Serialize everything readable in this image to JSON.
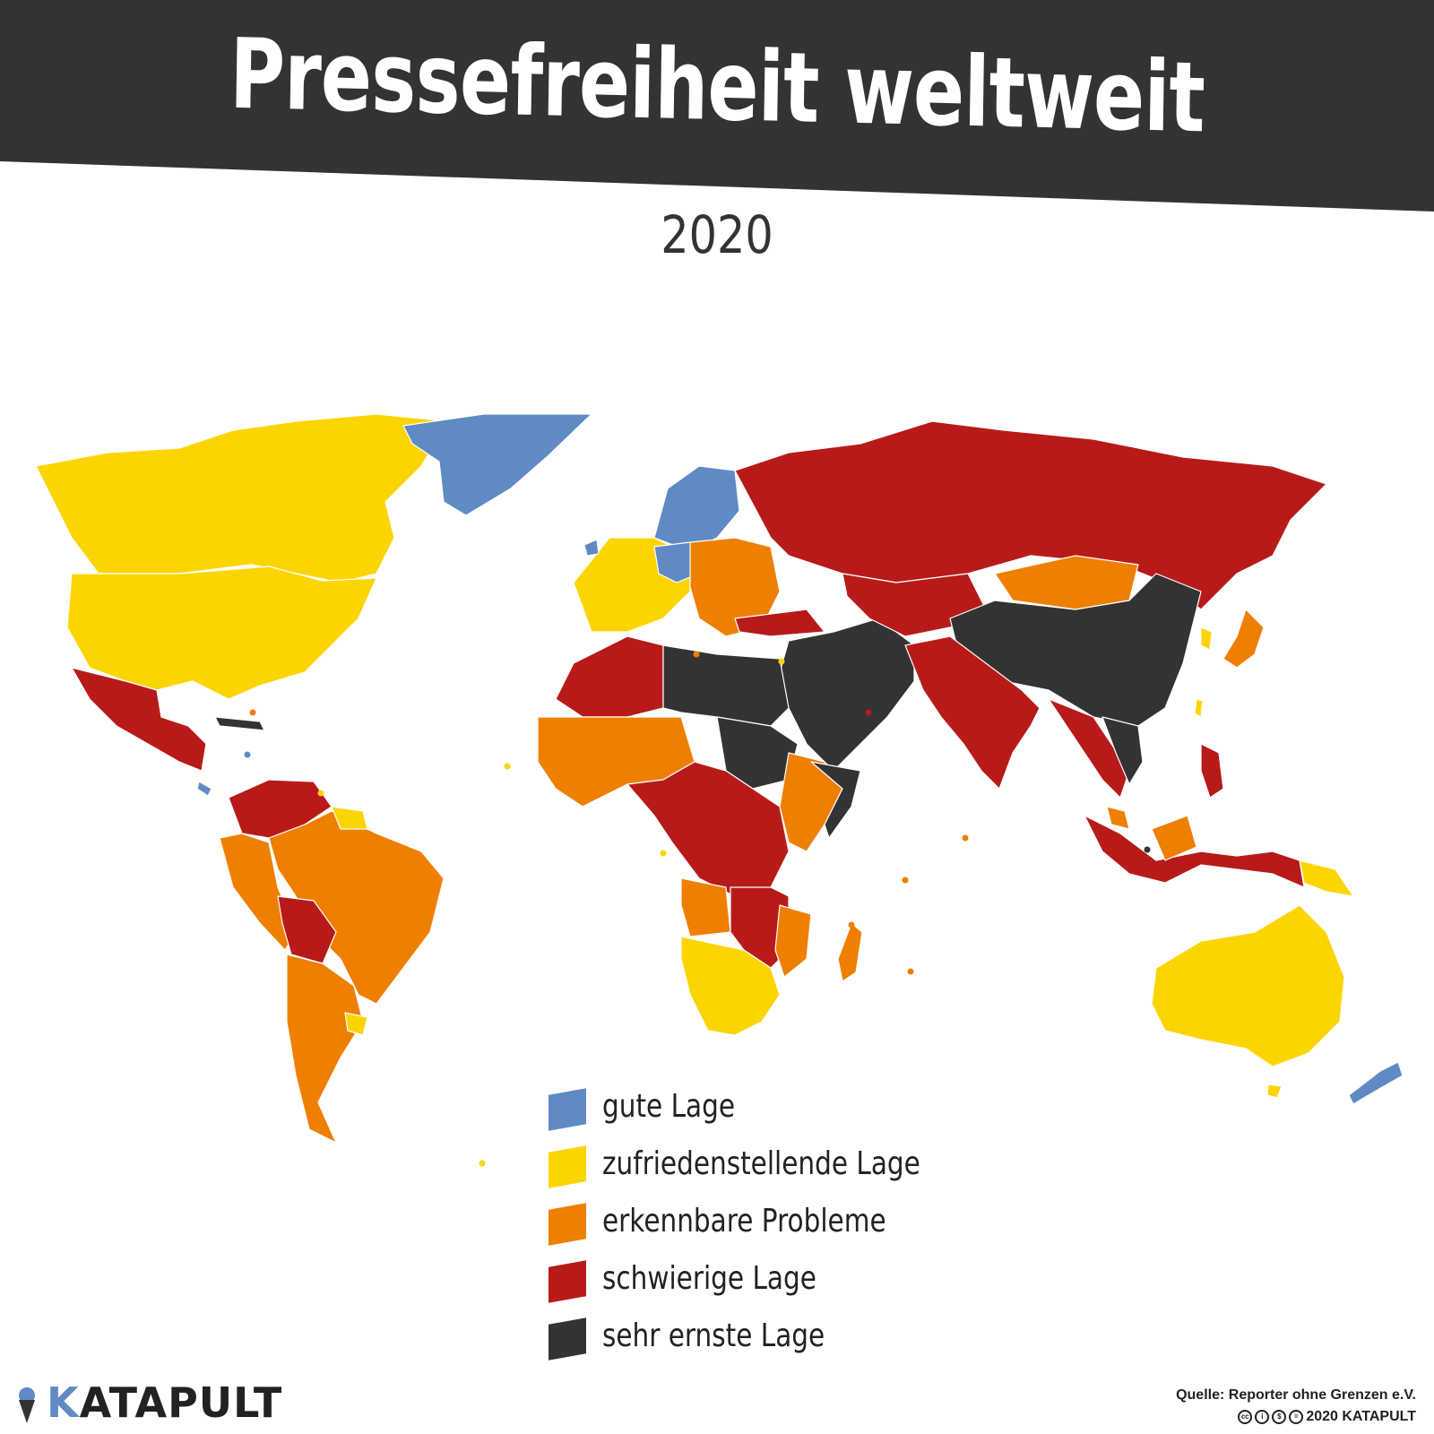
{
  "header": {
    "title": "Pressefreiheit weltweit",
    "subtitle": "2020"
  },
  "colors": {
    "banner": "#333333",
    "gut": "#5f8ac4",
    "zufriedenstellend": "#fcd500",
    "probleme": "#ef7f00",
    "schwierig": "#b81a1a",
    "sehr_ernst": "#333333"
  },
  "legend": [
    {
      "label": "gute Lage",
      "color": "#5f8ac4"
    },
    {
      "label": "zufriedenstellende Lage",
      "color": "#fcd500"
    },
    {
      "label": "erkennbare Probleme",
      "color": "#ef7f00"
    },
    {
      "label": "schwierige Lage",
      "color": "#b81a1a"
    },
    {
      "label": "sehr ernste Lage",
      "color": "#333333"
    }
  ],
  "footer": {
    "brand": "ATAPULT",
    "brand_initial": "K",
    "source": "Quelle: Reporter ohne Grenzen e.V.",
    "copyright": "2020 KATAPULT"
  }
}
